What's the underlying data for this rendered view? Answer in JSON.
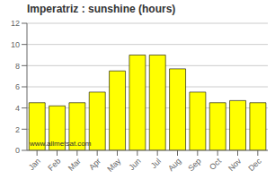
{
  "chart_data": {
    "type": "bar",
    "title": "Imperatriz : sunshine (hours)",
    "categories": [
      "Jan",
      "Feb",
      "Mar",
      "Apr",
      "May",
      "Jun",
      "Jul",
      "Aug",
      "Sep",
      "Oct",
      "Nov",
      "Dec"
    ],
    "values": [
      4.5,
      4.2,
      4.5,
      5.5,
      7.5,
      9.0,
      9.0,
      7.7,
      5.5,
      4.5,
      4.7,
      4.5
    ],
    "color": "#ffff00",
    "ylim": [
      0,
      12
    ],
    "yticks": [
      0,
      2,
      4,
      6,
      8,
      10,
      12
    ],
    "grid": true,
    "annotations": [
      "www.allmetsat.com"
    ]
  }
}
